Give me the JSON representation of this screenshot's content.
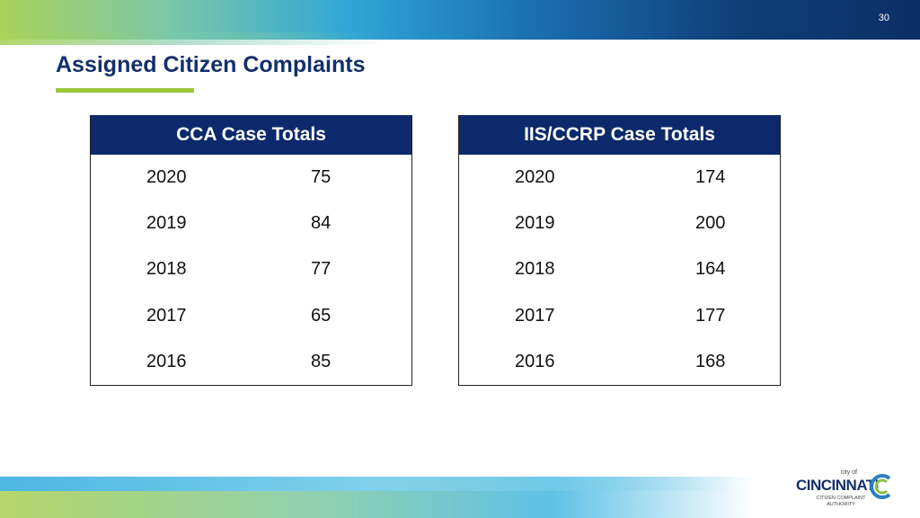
{
  "slide": {
    "page_number": "30",
    "title": "Assigned Citizen Complaints"
  },
  "tables": [
    {
      "header": "CCA Case Totals",
      "rows": [
        {
          "year": "2020",
          "value": "75"
        },
        {
          "year": "2019",
          "value": "84"
        },
        {
          "year": "2018",
          "value": "77"
        },
        {
          "year": "2017",
          "value": "65"
        },
        {
          "year": "2016",
          "value": "85"
        }
      ]
    },
    {
      "header": "IIS/CCRP Case Totals",
      "rows": [
        {
          "year": "2020",
          "value": "174"
        },
        {
          "year": "2019",
          "value": "200"
        },
        {
          "year": "2018",
          "value": "164"
        },
        {
          "year": "2017",
          "value": "177"
        },
        {
          "year": "2016",
          "value": "168"
        }
      ]
    }
  ],
  "logo": {
    "city_of": "city of",
    "name": "CINCINNATI",
    "subtitle_line1": "CITIZEN COMPLAINT",
    "subtitle_line2": "AUTHORITY"
  },
  "colors": {
    "title": "#13306b",
    "header_bg": "#0c2a6b",
    "accent_green": "#9cc83c"
  }
}
